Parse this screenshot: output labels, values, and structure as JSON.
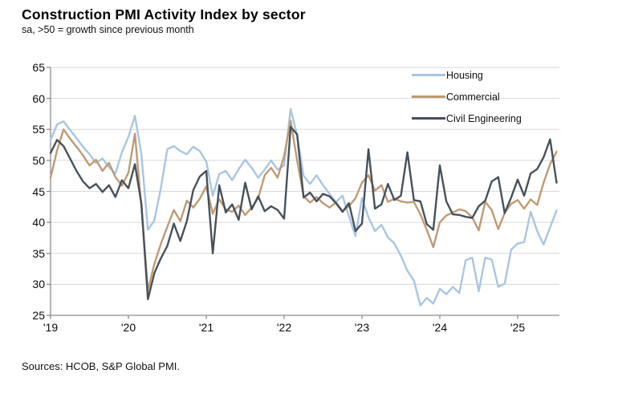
{
  "title": "Construction PMI Activity Index by sector",
  "subtitle": "sa, >50 = growth since previous month",
  "sources": "Sources: HCOB, S&P Global PMI.",
  "colors": {
    "housing": "#a9c5e4",
    "commercial": "#bf9a74",
    "civil": "#47515a",
    "gridline": "#d9d9d9",
    "axis": "#8c8c8c",
    "background": "#ffffff"
  },
  "chart_data": {
    "type": "line",
    "title": "Construction PMI Activity Index by sector",
    "subtitle": "sa, >50 = growth since previous month",
    "x_start": "2019-01",
    "x_freq": "monthly",
    "x_tick_labels": [
      "'19",
      "'20",
      "'21",
      "'22",
      "'23",
      "'24",
      "'25"
    ],
    "y_ticks": [
      25,
      30,
      35,
      40,
      45,
      50,
      55,
      60,
      65
    ],
    "ylim": [
      25,
      65
    ],
    "grid": "horizontal",
    "legend_position": "top-right-inside",
    "series": [
      {
        "name": "Housing",
        "color": "#a9c5e4",
        "values": [
          53.3,
          55.8,
          56.3,
          54.9,
          53.6,
          52.2,
          51.0,
          49.6,
          50.3,
          48.9,
          47.9,
          51.3,
          53.8,
          57.2,
          51.0,
          38.8,
          40.3,
          45.5,
          51.8,
          52.3,
          51.5,
          51.0,
          52.2,
          51.5,
          49.8,
          44.3,
          47.8,
          48.3,
          46.8,
          48.6,
          50.1,
          48.8,
          47.2,
          48.5,
          50.0,
          48.5,
          49.2,
          58.3,
          54.0,
          47.5,
          46.2,
          47.6,
          46.0,
          44.6,
          43.3,
          44.3,
          41.0,
          37.8,
          43.9,
          40.8,
          38.6,
          39.6,
          37.6,
          36.6,
          34.6,
          32.2,
          30.6,
          26.6,
          27.8,
          26.9,
          29.3,
          28.4,
          29.6,
          28.6,
          33.9,
          34.3,
          28.9,
          34.3,
          34.0,
          29.6,
          30.1,
          35.6,
          36.6,
          36.8,
          41.7,
          38.6,
          36.4,
          39.2,
          41.9
        ]
      },
      {
        "name": "Commercial",
        "color": "#bf9a74",
        "values": [
          47.2,
          51.6,
          55.0,
          53.5,
          52.2,
          50.8,
          49.2,
          50.1,
          48.3,
          49.6,
          47.3,
          45.9,
          48.0,
          54.3,
          42.5,
          29.0,
          33.3,
          36.5,
          39.3,
          42.0,
          40.2,
          43.5,
          42.4,
          43.8,
          45.8,
          41.4,
          43.7,
          42.1,
          41.7,
          42.7,
          41.2,
          42.4,
          43.9,
          47.6,
          48.8,
          47.2,
          50.7,
          56.4,
          50.0,
          44.2,
          43.2,
          44.1,
          43.1,
          42.4,
          43.2,
          41.8,
          42.6,
          43.9,
          46.4,
          47.6,
          45.1,
          46.0,
          43.3,
          43.8,
          43.4,
          43.2,
          43.3,
          41.3,
          38.8,
          36.0,
          40.0,
          41.1,
          41.6,
          42.1,
          41.8,
          40.8,
          38.7,
          43.3,
          42.0,
          38.9,
          41.5,
          43.0,
          43.6,
          42.2,
          43.7,
          42.8,
          46.4,
          49.4,
          51.4
        ]
      },
      {
        "name": "Civil Engineering",
        "color": "#47515a",
        "values": [
          51.2,
          53.3,
          52.3,
          50.3,
          48.3,
          46.6,
          45.5,
          46.2,
          44.9,
          46.0,
          44.1,
          46.8,
          45.5,
          49.4,
          43.0,
          27.6,
          31.8,
          34.2,
          36.2,
          39.8,
          37.0,
          40.2,
          45.2,
          47.4,
          48.3,
          35.0,
          46.0,
          41.6,
          42.9,
          40.4,
          46.4,
          42.1,
          44.2,
          41.8,
          42.6,
          42.0,
          40.6,
          55.4,
          54.2,
          44.0,
          44.8,
          43.4,
          44.6,
          44.2,
          43.1,
          41.7,
          43.1,
          38.6,
          39.8,
          51.8,
          42.2,
          42.9,
          46.2,
          43.6,
          44.3,
          51.3,
          43.6,
          43.4,
          39.7,
          38.8,
          49.2,
          43.4,
          41.3,
          41.2,
          40.9,
          40.7,
          42.6,
          43.5,
          46.6,
          47.3,
          41.5,
          44.0,
          46.9,
          44.3,
          47.9,
          48.6,
          50.5,
          53.4,
          46.4
        ]
      }
    ]
  }
}
